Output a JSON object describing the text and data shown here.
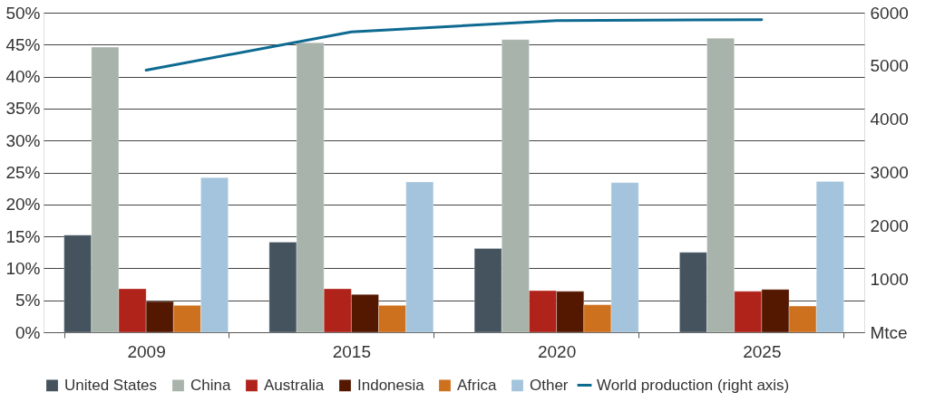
{
  "chart_data": {
    "type": "bar",
    "categories": [
      "2009",
      "2015",
      "2020",
      "2025"
    ],
    "series": [
      {
        "name": "United States",
        "color": "#44535e",
        "values": [
          15.2,
          14.1,
          13.1,
          12.5
        ]
      },
      {
        "name": "China",
        "color": "#a8b4ab",
        "values": [
          44.6,
          45.3,
          45.8,
          46.0
        ]
      },
      {
        "name": "Australia",
        "color": "#b0231a",
        "values": [
          6.8,
          6.8,
          6.5,
          6.4
        ]
      },
      {
        "name": "Indonesia",
        "color": "#541800",
        "values": [
          4.8,
          5.9,
          6.4,
          6.7
        ]
      },
      {
        "name": "Africa",
        "color": "#ce711e",
        "values": [
          4.2,
          4.2,
          4.3,
          4.1
        ]
      },
      {
        "name": "Other",
        "color": "#a3c4dc",
        "values": [
          24.2,
          23.5,
          23.4,
          23.6
        ]
      },
      {
        "name": "World production (right axis)",
        "type": "line",
        "axis": "y2",
        "color": "#0e6a91",
        "values": [
          4920,
          5640,
          5850,
          5870
        ]
      }
    ],
    "ylim": [
      0,
      50
    ],
    "yticks": [
      {
        "value": 0,
        "label": "0%"
      },
      {
        "value": 5,
        "label": "5%"
      },
      {
        "value": 10,
        "label": "10%"
      },
      {
        "value": 15,
        "label": "15%"
      },
      {
        "value": 20,
        "label": "20%"
      },
      {
        "value": 25,
        "label": "25%"
      },
      {
        "value": 30,
        "label": "30%"
      },
      {
        "value": 35,
        "label": "35%"
      },
      {
        "value": 40,
        "label": "40%"
      },
      {
        "value": 45,
        "label": "45%"
      },
      {
        "value": 50,
        "label": "50%"
      }
    ],
    "y2lim": [
      0,
      6000
    ],
    "y2ticks": [
      {
        "value": 0,
        "label": "Mtce"
      },
      1000,
      2000,
      3000,
      4000,
      5000,
      6000
    ],
    "grid": "y",
    "legend": "bottom",
    "marker": "none",
    "line_style": "solid"
  }
}
